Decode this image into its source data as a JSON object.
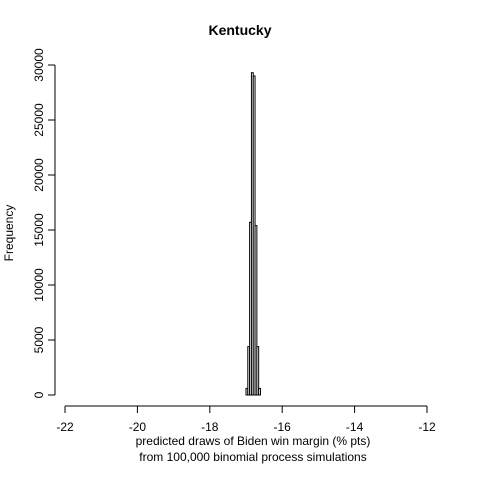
{
  "chart_data": {
    "type": "bar",
    "title": "Kentucky",
    "xlabel": "predicted draws of Biden win margin (% pts)",
    "xlabel_line2": "from 100,000 binomial process simulations",
    "ylabel": "Frequency",
    "xlim": [
      -22,
      -12
    ],
    "ylim": [
      0,
      30000
    ],
    "x_ticks": [
      -22,
      -20,
      -18,
      -16,
      -14,
      -12
    ],
    "y_ticks": [
      0,
      5000,
      10000,
      15000,
      20000,
      25000,
      30000
    ],
    "bin_width": 0.05,
    "bins": [
      {
        "start": -17.0,
        "count": 600
      },
      {
        "start": -16.95,
        "count": 4400
      },
      {
        "start": -16.9,
        "count": 15700
      },
      {
        "start": -16.85,
        "count": 29300
      },
      {
        "start": -16.8,
        "count": 29000
      },
      {
        "start": -16.75,
        "count": 15400
      },
      {
        "start": -16.7,
        "count": 4400
      },
      {
        "start": -16.65,
        "count": 600
      }
    ]
  }
}
